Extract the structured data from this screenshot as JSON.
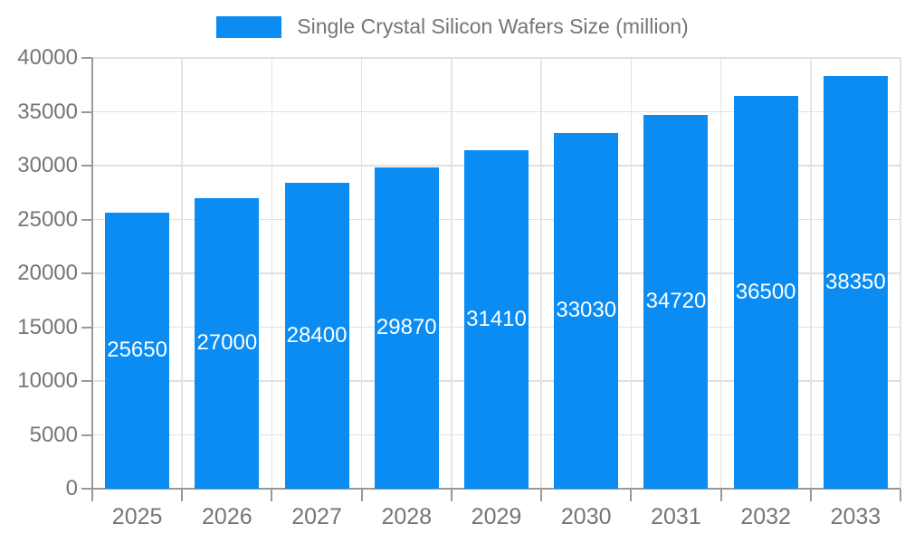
{
  "legend": {
    "label": "Single Crystal Silicon Wafers Size (million)",
    "swatch_color": "#0a8cf2"
  },
  "colors": {
    "bar": "#0a8cf2",
    "axis": "#999999",
    "gridline_h": "#e0e0e0",
    "gridline_v": "#e4e4e4",
    "axis_text": "#757575",
    "bar_label_text": "#ffffff",
    "background": "#ffffff"
  },
  "chart_data": {
    "type": "bar",
    "title": "Single Crystal Silicon Wafers Size (million)",
    "legend_position": "top-center",
    "grid": "on",
    "categories": [
      "2025",
      "2026",
      "2027",
      "2028",
      "2029",
      "2030",
      "2031",
      "2032",
      "2033"
    ],
    "series": [
      {
        "name": "Single Crystal Silicon Wafers Size (million)",
        "values": [
          25650,
          27000,
          28400,
          29870,
          31410,
          33030,
          34720,
          36500,
          38350
        ],
        "color": "#0a8cf2"
      }
    ],
    "data_labels": [
      "25650",
      "27000",
      "28400",
      "29870",
      "31410",
      "33030",
      "34720",
      "36500",
      "38350"
    ],
    "xlabel": "",
    "ylabel": "",
    "ylim": [
      0,
      40000
    ],
    "y_tick_step": 5000,
    "y_tick_labels": [
      "0",
      "5000",
      "10000",
      "15000",
      "20000",
      "25000",
      "30000",
      "35000",
      "40000"
    ]
  }
}
